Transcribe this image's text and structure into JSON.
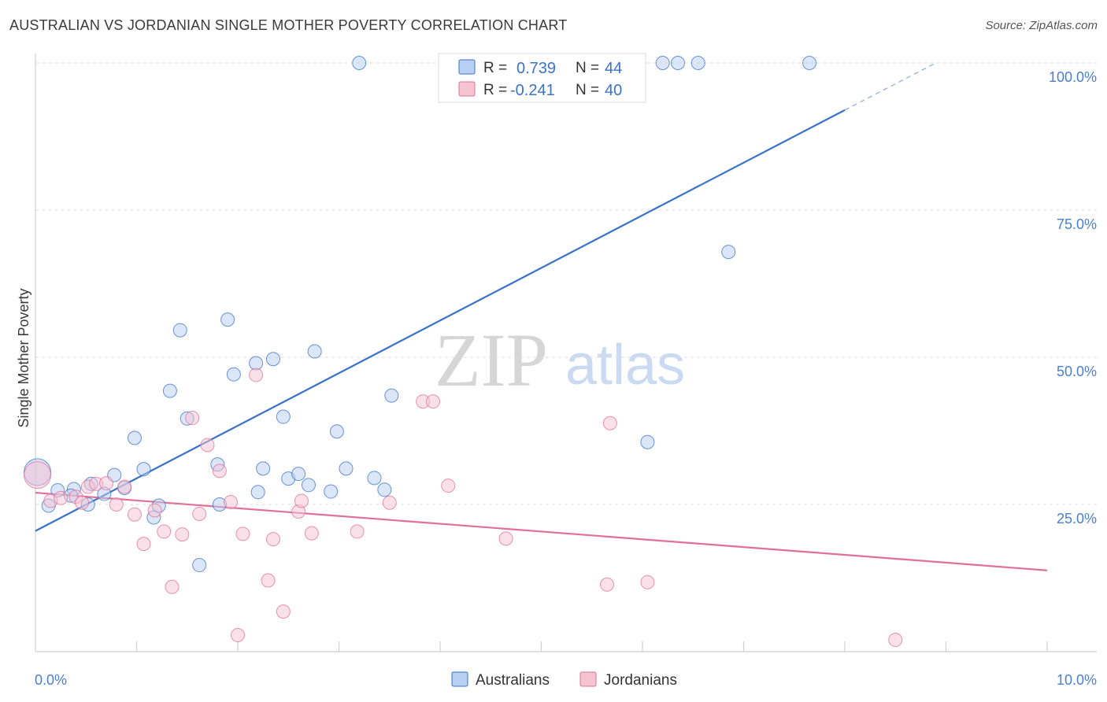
{
  "title": "AUSTRALIAN VS JORDANIAN SINGLE MOTHER POVERTY CORRELATION CHART",
  "source": "Source: ZipAtlas.com",
  "watermark": {
    "part1": "ZIP",
    "part2": "atlas"
  },
  "colors": {
    "blue": "#3a72c8",
    "blue_fill": "#b8d0f2",
    "pink": "#e0709a",
    "pink_fill": "#f6c3d3",
    "grid": "#dddddd",
    "tick_text": "#4a7fd0"
  },
  "legend": {
    "rows": [
      {
        "series": "Australians",
        "r_label": "R =",
        "r_value": "0.739",
        "n_label": "N =",
        "n_value": "44"
      },
      {
        "series": "Jordanians",
        "r_label": "R =",
        "r_value": "-0.241",
        "n_label": "N =",
        "n_value": "40"
      }
    ]
  },
  "chart_data": {
    "type": "scatter",
    "title": "AUSTRALIAN VS JORDANIAN SINGLE MOTHER POVERTY CORRELATION CHART",
    "xlabel": "",
    "ylabel": "Single Mother Poverty",
    "xlim": [
      0,
      10
    ],
    "ylim": [
      0,
      100
    ],
    "x_tick_labels": [
      "0.0%",
      "10.0%"
    ],
    "y_tick_labels": [
      "25.0%",
      "50.0%",
      "75.0%",
      "100.0%"
    ],
    "y_tick_values": [
      25,
      50,
      75,
      100
    ],
    "legend_position": "bottom-center",
    "series": [
      {
        "name": "Australians",
        "color": "#3a72c8",
        "trend": {
          "x0": 0,
          "y0": 20.5,
          "x1": 8.0,
          "y1": 92.0,
          "dashed_to": {
            "x": 8.9,
            "y": 100.0
          }
        },
        "points": [
          [
            0.02,
            30.5,
            "big"
          ],
          [
            0.13,
            24.8
          ],
          [
            0.22,
            27.4
          ],
          [
            0.38,
            27.6
          ],
          [
            0.35,
            26.5
          ],
          [
            0.52,
            25.0
          ],
          [
            0.55,
            28.5
          ],
          [
            0.68,
            26.8
          ],
          [
            0.78,
            30.0
          ],
          [
            0.88,
            27.8
          ],
          [
            0.98,
            36.3
          ],
          [
            1.07,
            31.0
          ],
          [
            1.17,
            22.8
          ],
          [
            1.22,
            24.8
          ],
          [
            1.33,
            44.3
          ],
          [
            1.43,
            54.6
          ],
          [
            1.5,
            39.6
          ],
          [
            1.62,
            14.7
          ],
          [
            1.8,
            31.8
          ],
          [
            1.82,
            25.0
          ],
          [
            1.9,
            56.4
          ],
          [
            1.96,
            47.1
          ],
          [
            2.18,
            49.0
          ],
          [
            2.2,
            27.1
          ],
          [
            2.25,
            31.1
          ],
          [
            2.35,
            49.7
          ],
          [
            2.45,
            39.9
          ],
          [
            2.5,
            29.4
          ],
          [
            2.6,
            30.2
          ],
          [
            2.7,
            28.3
          ],
          [
            2.76,
            51.0
          ],
          [
            2.92,
            27.2
          ],
          [
            2.98,
            37.4
          ],
          [
            3.07,
            31.1
          ],
          [
            3.2,
            100
          ],
          [
            3.35,
            29.5
          ],
          [
            3.45,
            27.5
          ],
          [
            3.52,
            43.5
          ],
          [
            6.05,
            35.6
          ],
          [
            6.2,
            100
          ],
          [
            6.35,
            100
          ],
          [
            6.55,
            100
          ],
          [
            6.85,
            67.9
          ],
          [
            7.65,
            100
          ]
        ]
      },
      {
        "name": "Jordanians",
        "color": "#e0709a",
        "trend": {
          "x0": 0,
          "y0": 27.0,
          "x1": 10.0,
          "y1": 13.8
        },
        "points": [
          [
            0.02,
            30.0,
            "big"
          ],
          [
            0.15,
            25.6
          ],
          [
            0.25,
            26.1
          ],
          [
            0.4,
            26.3
          ],
          [
            0.46,
            25.3
          ],
          [
            0.52,
            28.0
          ],
          [
            0.6,
            28.5
          ],
          [
            0.7,
            28.6
          ],
          [
            0.8,
            25.0
          ],
          [
            0.88,
            28.0
          ],
          [
            0.98,
            23.3
          ],
          [
            1.07,
            18.3
          ],
          [
            1.18,
            24.0
          ],
          [
            1.27,
            20.4
          ],
          [
            1.35,
            11.0
          ],
          [
            1.45,
            19.9
          ],
          [
            1.55,
            39.7
          ],
          [
            1.62,
            23.4
          ],
          [
            1.7,
            35.1
          ],
          [
            1.82,
            30.7
          ],
          [
            1.93,
            25.4
          ],
          [
            2.0,
            2.8
          ],
          [
            2.05,
            20.0
          ],
          [
            2.18,
            47.0
          ],
          [
            2.3,
            12.1
          ],
          [
            2.35,
            19.1
          ],
          [
            2.45,
            6.8
          ],
          [
            2.6,
            23.8
          ],
          [
            2.63,
            25.6
          ],
          [
            2.73,
            20.1
          ],
          [
            3.18,
            20.4
          ],
          [
            3.5,
            25.3
          ],
          [
            3.83,
            42.5
          ],
          [
            3.93,
            42.5
          ],
          [
            4.08,
            28.2
          ],
          [
            4.65,
            19.2
          ],
          [
            5.65,
            11.4
          ],
          [
            5.68,
            38.8
          ],
          [
            6.05,
            11.8
          ],
          [
            8.5,
            2.0
          ]
        ]
      }
    ]
  }
}
